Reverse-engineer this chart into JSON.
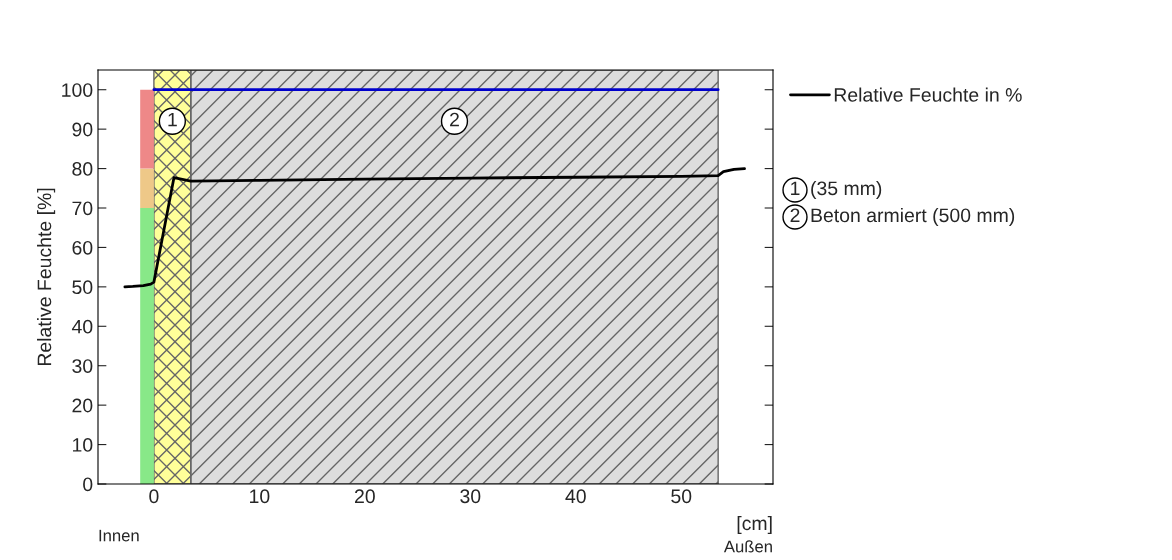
{
  "chart_data": {
    "type": "line",
    "ylabel": "Relative Feuchte [%]",
    "xlabel": "[cm]",
    "xlim": [
      -5.3,
      58.7
    ],
    "xticks": [
      0,
      10,
      20,
      30,
      40,
      50
    ],
    "ylim": [
      0,
      105
    ],
    "yticks": [
      0,
      10,
      20,
      30,
      40,
      50,
      60,
      70,
      80,
      90,
      100
    ],
    "grid": false,
    "legend": "top right",
    "stacked": true,
    "series": [
      {
        "type": "bar",
        "x": [
          -0.65
        ],
        "values": [
          70
        ],
        "color": "#88e888"
      },
      {
        "type": "bar",
        "x": [
          -0.65
        ],
        "values": [
          10
        ],
        "color": "#eec888"
      },
      {
        "type": "bar",
        "x": [
          -0.65
        ],
        "values": [
          20
        ],
        "color": "#ee8888"
      },
      {
        "x": [
          0,
          53.5
        ],
        "values": [
          100,
          100
        ],
        "color": "#0000cc"
      },
      {
        "name": "Relative Feuchte in %",
        "color": "#000000",
        "x": [
          -2.75,
          -2,
          -1,
          -0.3,
          0,
          1.9,
          3.5,
          10,
          20,
          30,
          40,
          50,
          53.5,
          54,
          55,
          56
        ],
        "values": [
          50,
          50.1,
          50.3,
          50.7,
          51.2,
          77.7,
          76.8,
          77.0,
          77.3,
          77.6,
          77.8,
          78.0,
          78.2,
          79.2,
          79.8,
          80
        ]
      }
    ],
    "bands": [
      {
        "axis": "x",
        "from": 0,
        "to": 3.5,
        "label": "1",
        "color": "#ffff99"
      },
      {
        "axis": "x",
        "from": 3.5,
        "to": 53.5,
        "label": "2",
        "color": "#dddddd"
      }
    ],
    "annotations": [
      "Innen",
      "Außen",
      "1 (35 mm)",
      "2 Beton armiert (500 mm)"
    ]
  }
}
